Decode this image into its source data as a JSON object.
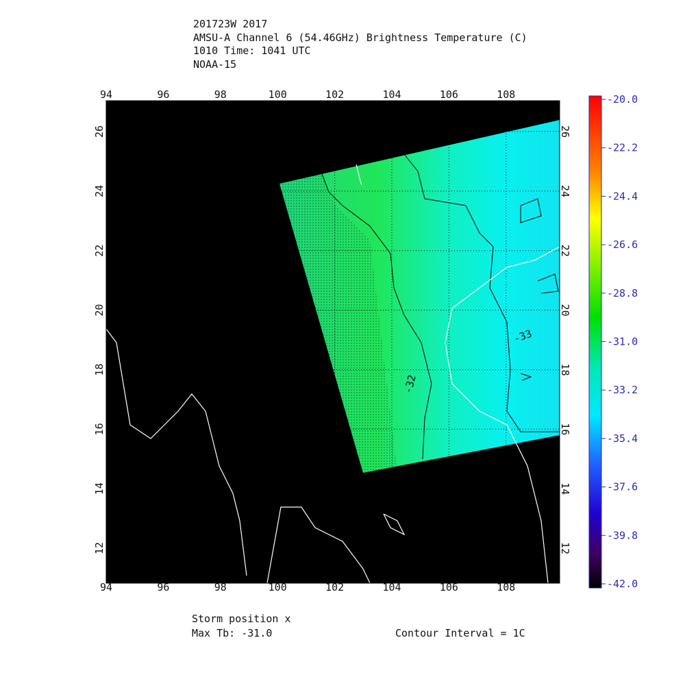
{
  "header": {
    "lines": [
      "201723W 2017",
      "AMSU-A Channel 6 (54.46GHz) Brightness Temperature (C)",
      "1010 Time: 1041 UTC",
      "NOAA-15"
    ]
  },
  "map": {
    "lon_ticks": [
      94,
      96,
      98,
      100,
      102,
      104,
      106,
      108
    ],
    "lat_ticks": [
      12,
      14,
      16,
      18,
      20,
      22,
      24,
      26
    ],
    "contour_labels": [
      "-32",
      "-33"
    ]
  },
  "colorbar": {
    "labels": [
      "-20.0",
      "-22.2",
      "-24.4",
      "-26.6",
      "-28.8",
      "-31.0",
      "-33.2",
      "-35.4",
      "-37.6",
      "-39.8",
      "-42.0"
    ]
  },
  "footer": {
    "storm_position": "Storm position x",
    "max_tb": "Max Tb: -31.0",
    "contour_interval": "Contour Interval = 1C"
  }
}
